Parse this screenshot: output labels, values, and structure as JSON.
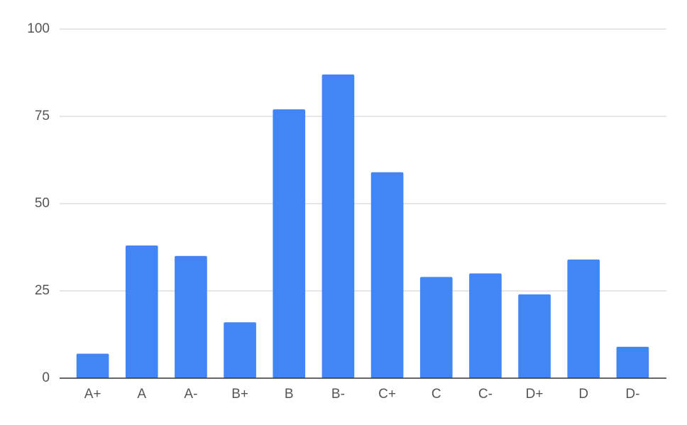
{
  "chart_data": {
    "type": "bar",
    "categories": [
      "A+",
      "A",
      "A-",
      "B+",
      "B",
      "B-",
      "C+",
      "C",
      "C-",
      "D+",
      "D",
      "D-"
    ],
    "values": [
      7,
      38,
      35,
      16,
      77,
      87,
      59,
      29,
      30,
      24,
      34,
      9
    ],
    "color": "#4285f4",
    "ylim": [
      0,
      100
    ],
    "yticks": [
      0,
      25,
      50,
      75,
      100
    ],
    "grid": true
  }
}
